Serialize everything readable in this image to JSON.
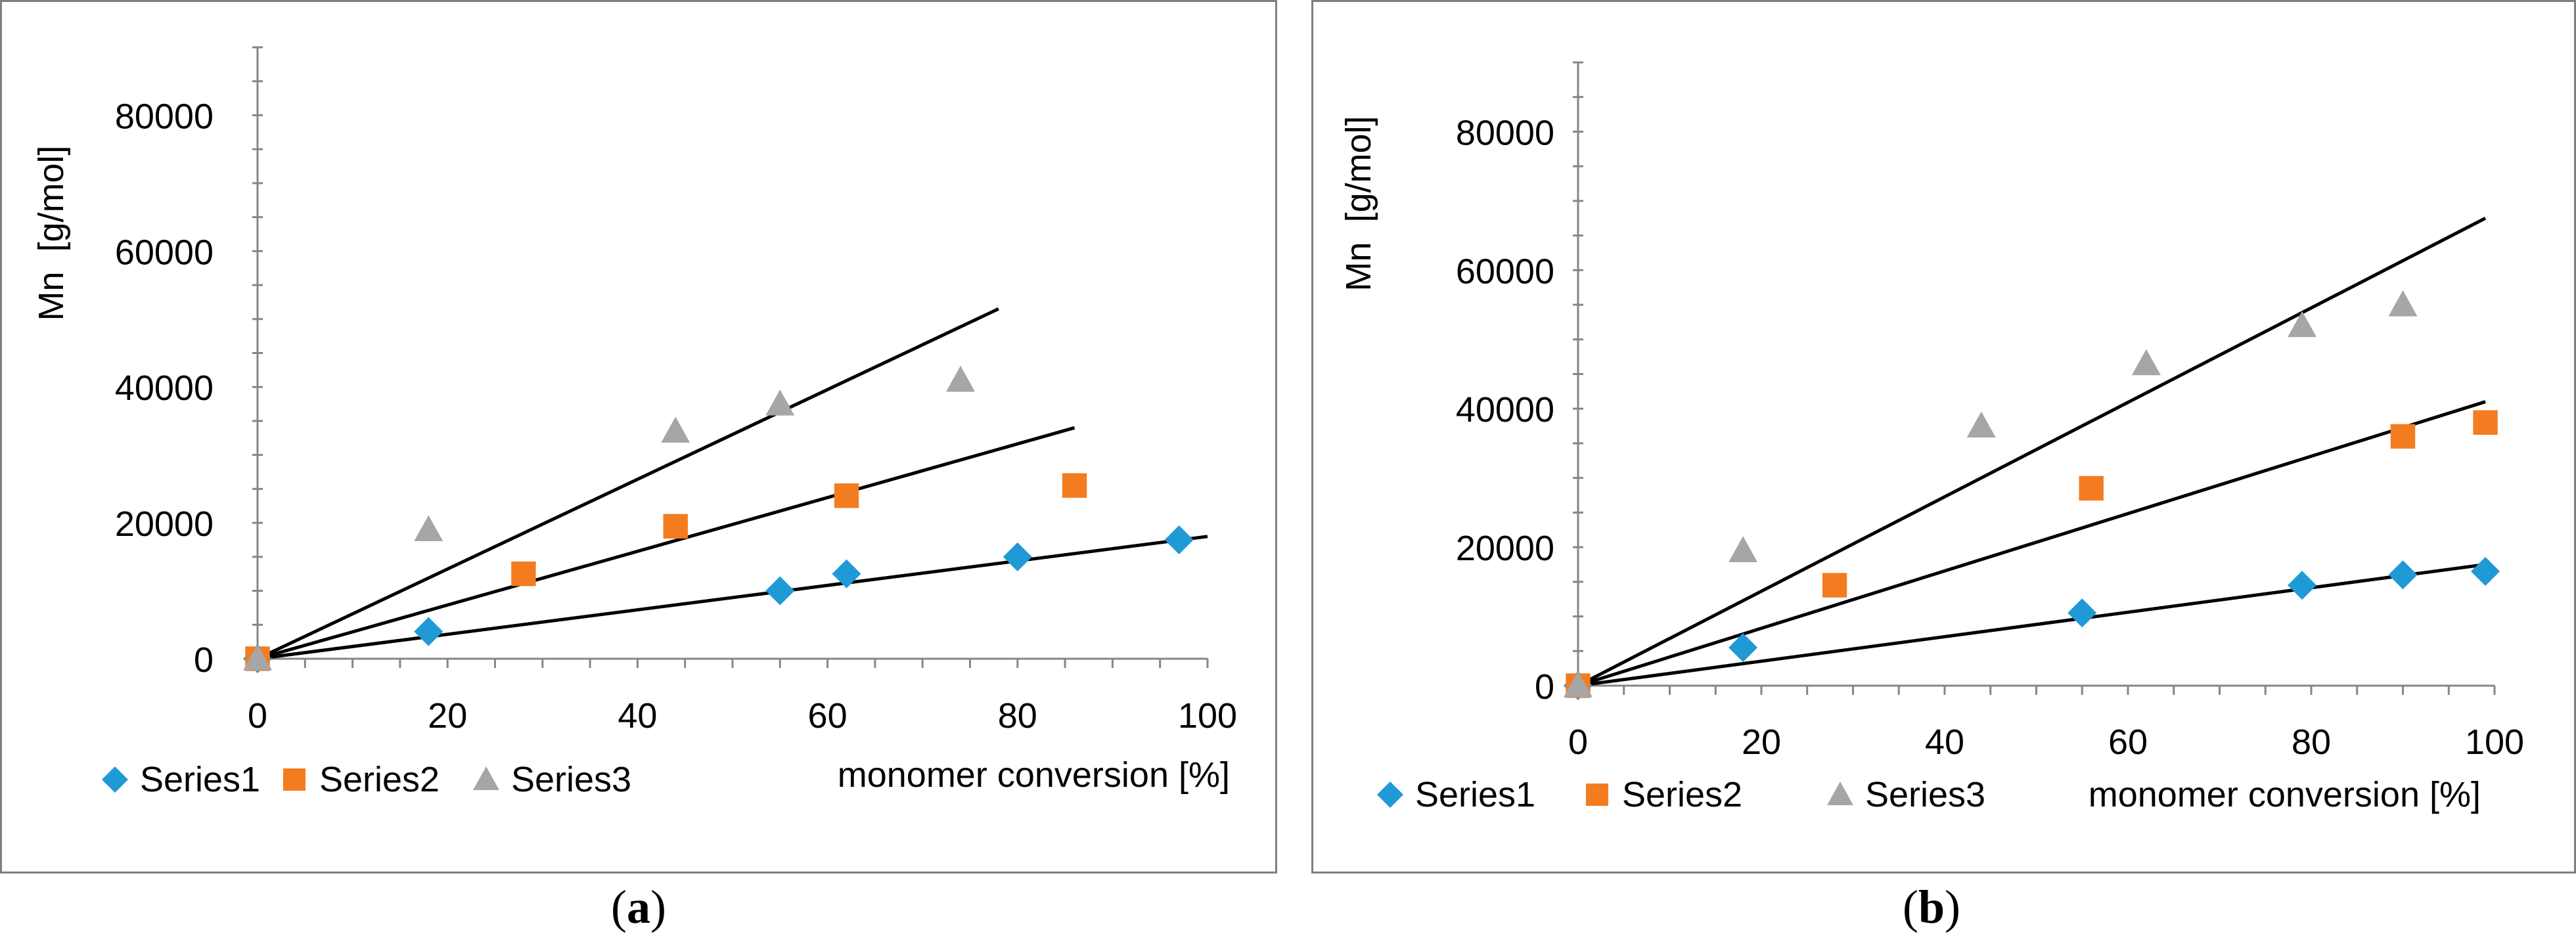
{
  "figure": {
    "captions": [
      {
        "open": "(",
        "letter": "a",
        "close": ")"
      },
      {
        "open": "(",
        "letter": "b",
        "close": ")"
      }
    ]
  },
  "colors": {
    "series1": "#1f9ad6",
    "series2": "#f47c20",
    "series3": "#a6a6a6",
    "trendline": "#000000",
    "axis": "#868686",
    "frame": "#7f7f7f"
  },
  "chart_data": [
    {
      "panel": "a",
      "type": "scatter",
      "title": "",
      "xlabel": "monomer conversion [%]",
      "ylabel": "Mn  [g/mol]",
      "xlim": [
        0,
        100
      ],
      "ylim": [
        0,
        90000
      ],
      "x_ticks": [
        0,
        20,
        40,
        60,
        80,
        100
      ],
      "y_ticks": [
        0,
        20000,
        40000,
        60000,
        80000
      ],
      "legend_position": "bottom-left",
      "series": [
        {
          "name": "Series1",
          "marker": "diamond",
          "x": [
            0,
            18,
            55,
            62,
            80,
            97
          ],
          "y": [
            0,
            4000,
            10000,
            12500,
            15000,
            17500
          ],
          "trendline": {
            "x": [
              0,
              100
            ],
            "y": [
              0,
              18000
            ]
          }
        },
        {
          "name": "Series2",
          "marker": "square",
          "x": [
            0,
            28,
            44,
            62,
            86
          ],
          "y": [
            0,
            12500,
            19500,
            24000,
            25500
          ],
          "trendline": {
            "x": [
              0,
              86
            ],
            "y": [
              0,
              34000
            ]
          }
        },
        {
          "name": "Series3",
          "marker": "triangle",
          "x": [
            0,
            18,
            44,
            55,
            74
          ],
          "y": [
            0,
            19000,
            33500,
            37500,
            41000
          ],
          "trendline": {
            "x": [
              0,
              78
            ],
            "y": [
              0,
              51500
            ]
          }
        }
      ]
    },
    {
      "panel": "b",
      "type": "scatter",
      "title": "",
      "xlabel": "monomer conversion [%]",
      "ylabel": "Mn  [g/mol]",
      "xlim": [
        0,
        100
      ],
      "ylim": [
        0,
        90000
      ],
      "x_ticks": [
        0,
        20,
        40,
        60,
        80,
        100
      ],
      "y_ticks": [
        0,
        20000,
        40000,
        60000,
        80000
      ],
      "legend_position": "bottom-left",
      "series": [
        {
          "name": "Series1",
          "marker": "diamond",
          "x": [
            0,
            18,
            55,
            79,
            90,
            99
          ],
          "y": [
            0,
            5500,
            10500,
            14500,
            16000,
            16500
          ],
          "trendline": {
            "x": [
              0,
              99
            ],
            "y": [
              0,
              17500
            ]
          }
        },
        {
          "name": "Series2",
          "marker": "square",
          "x": [
            0,
            28,
            56,
            90,
            99
          ],
          "y": [
            0,
            14500,
            28500,
            36000,
            38000
          ],
          "trendline": {
            "x": [
              0,
              99
            ],
            "y": [
              0,
              41000
            ]
          }
        },
        {
          "name": "Series3",
          "marker": "triangle",
          "x": [
            0,
            18,
            44,
            62,
            79,
            90
          ],
          "y": [
            0,
            19500,
            37500,
            46500,
            52000,
            55000
          ],
          "trendline": {
            "x": [
              0,
              99
            ],
            "y": [
              0,
              67500
            ]
          }
        }
      ]
    }
  ]
}
